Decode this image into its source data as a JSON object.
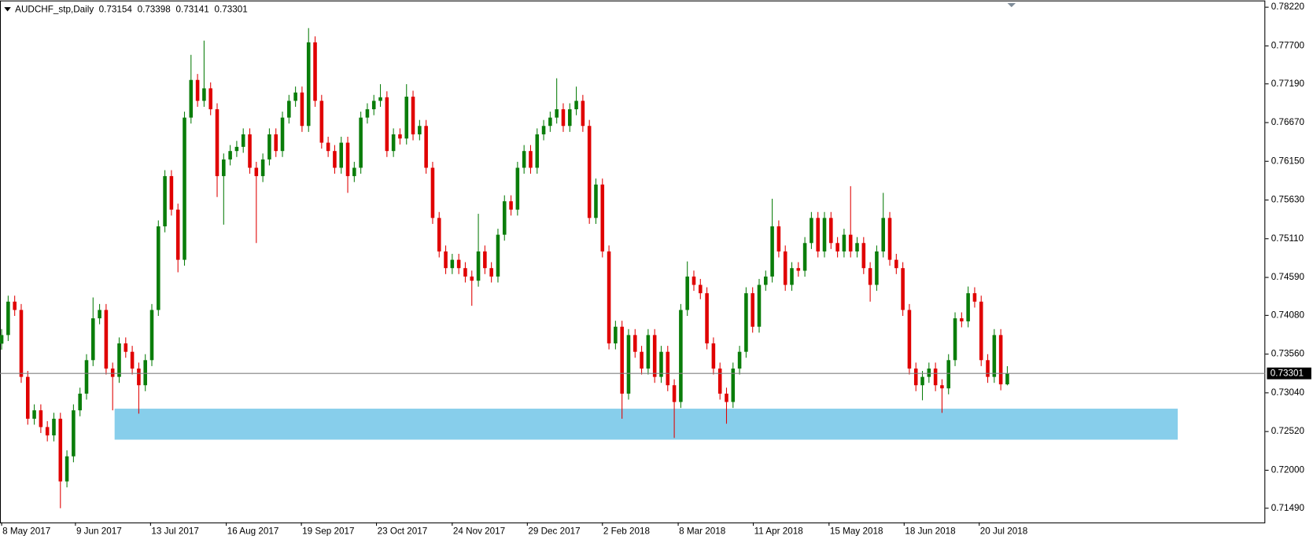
{
  "chart_data": {
    "type": "candlestick",
    "title": "AUDCHF_stp,Daily",
    "up_color": "#0a7d0a",
    "down_color": "#e00000",
    "price_line_color": "#808080",
    "xlim": [
      -0.25,
      193.5
    ],
    "ylim": [
      0.71299,
      0.7831
    ],
    "yticks": [
      {
        "value": 0.7822,
        "label": "0.78220"
      },
      {
        "value": 0.777,
        "label": "0.77700"
      },
      {
        "value": 0.7719,
        "label": "0.77190"
      },
      {
        "value": 0.7667,
        "label": "0.76670"
      },
      {
        "value": 0.7615,
        "label": "0.76150"
      },
      {
        "value": 0.7563,
        "label": "0.75630"
      },
      {
        "value": 0.7511,
        "label": "0.75110"
      },
      {
        "value": 0.7459,
        "label": "0.74590"
      },
      {
        "value": 0.7408,
        "label": "0.74080"
      },
      {
        "value": 0.7356,
        "label": "0.73560"
      },
      {
        "value": 0.7304,
        "label": "0.73040"
      },
      {
        "value": 0.7252,
        "label": "0.72520"
      },
      {
        "value": 0.72,
        "label": "0.72000"
      },
      {
        "value": 0.7149,
        "label": "0.71490"
      }
    ],
    "xticks": [
      {
        "value": 0,
        "label": "8 May 2017"
      },
      {
        "value": 11.3,
        "label": "9 Jun 2017"
      },
      {
        "value": 22.8,
        "label": "13 Jul 2017"
      },
      {
        "value": 34.4,
        "label": "16 Aug 2017"
      },
      {
        "value": 45.9,
        "label": "19 Sep 2017"
      },
      {
        "value": 57.4,
        "label": "23 Oct 2017"
      },
      {
        "value": 69,
        "label": "24 Nov 2017"
      },
      {
        "value": 80.5,
        "label": "29 Dec 2017"
      },
      {
        "value": 92,
        "label": "2 Feb 2018"
      },
      {
        "value": 103.6,
        "label": "8 Mar 2018"
      },
      {
        "value": 115.1,
        "label": "11 Apr 2018"
      },
      {
        "value": 126.7,
        "label": "15 May 2018"
      },
      {
        "value": 138.2,
        "label": "18 Jun 2018"
      },
      {
        "value": 149.7,
        "label": "20 Jul 2018"
      }
    ],
    "zones": [
      {
        "xlim": [
          17.3,
          180.1
        ],
        "ylim": [
          0.72411,
          0.72827
        ],
        "color": "#87ceeb"
      }
    ],
    "open": [
      0.737,
      0.73816,
      0.74265,
      0.74153,
      0.73254,
      0.72692,
      0.72805,
      0.7258,
      0.72468,
      0.72692,
      0.7185,
      0.72187,
      0.72805,
      0.73029,
      0.73479,
      0.74041,
      0.74153,
      0.73366,
      0.73254,
      0.73704,
      0.73591,
      0.73366,
      0.73142,
      0.73479,
      0.74153,
      0.75276,
      0.75951,
      0.75501,
      0.74827,
      0.76737,
      0.77243,
      0.76962,
      0.7713,
      0.76849,
      0.75951,
      0.76175,
      0.76288,
      0.76344,
      0.76512,
      0.76063,
      0.75951,
      0.76175,
      0.76512,
      0.76288,
      0.76737,
      0.76962,
      0.77074,
      0.76625,
      0.77748,
      0.76962,
      0.764,
      0.76288,
      0.76063,
      0.764,
      0.75951,
      0.76063,
      0.76737,
      0.76849,
      0.76962,
      0.7701,
      0.76288,
      0.76512,
      0.76456,
      0.77018,
      0.76512,
      0.76625,
      0.76063,
      0.75389,
      0.74939,
      0.74715,
      0.74827,
      0.74715,
      0.74602,
      0.74546,
      0.74939,
      0.74715,
      0.74602,
      0.75164,
      0.75613,
      0.75501,
      0.76063,
      0.76288,
      0.76063,
      0.76512,
      0.76625,
      0.76737,
      0.76849,
      0.76625,
      0.76849,
      0.76962,
      0.76625,
      0.75389,
      0.75838,
      0.74939,
      0.73704,
      0.73928,
      0.73029,
      0.73816,
      0.73591,
      0.73366,
      0.73816,
      0.73254,
      0.73591,
      0.73142,
      0.72917,
      0.74153,
      0.74602,
      0.7449,
      0.74378,
      0.73704,
      0.73366,
      0.73029,
      0.72917,
      0.73366,
      0.73591,
      0.74378,
      0.73928,
      0.7449,
      0.74602,
      0.75276,
      0.74939,
      0.7449,
      0.74715,
      0.7468,
      0.75052,
      0.75389,
      0.74939,
      0.75389,
      0.75052,
      0.74939,
      0.75164,
      0.74939,
      0.75052,
      0.74715,
      0.7449,
      0.74939,
      0.75389,
      0.74827,
      0.74715,
      0.74153,
      0.73366,
      0.73142,
      0.73254,
      0.73366,
      0.73142,
      0.731,
      0.73479,
      0.74041,
      0.74,
      0.74378,
      0.74265,
      0.73479,
      0.73254,
      0.73816,
      0.73154
    ],
    "high": [
      0.73896,
      0.74345,
      0.74345,
      0.74233,
      0.73334,
      0.72885,
      0.72885,
      0.7266,
      0.72772,
      0.72772,
      0.72267,
      0.72885,
      0.73109,
      0.73559,
      0.74321,
      0.74233,
      0.74233,
      0.73446,
      0.73784,
      0.73784,
      0.73671,
      0.73446,
      0.73559,
      0.74233,
      0.75356,
      0.76031,
      0.76031,
      0.75581,
      0.76817,
      0.7758,
      0.77323,
      0.77771,
      0.7721,
      0.76929,
      0.76255,
      0.76368,
      0.76424,
      0.76592,
      0.76592,
      0.76143,
      0.76255,
      0.76592,
      0.76592,
      0.76817,
      0.77042,
      0.77154,
      0.77154,
      0.77939,
      0.77828,
      0.77042,
      0.7648,
      0.76368,
      0.7648,
      0.7648,
      0.76143,
      0.76817,
      0.76929,
      0.77042,
      0.77186,
      0.7709,
      0.76592,
      0.76592,
      0.77186,
      0.77098,
      0.76705,
      0.76705,
      0.76143,
      0.75469,
      0.75019,
      0.74907,
      0.74907,
      0.74795,
      0.74682,
      0.75445,
      0.75019,
      0.74795,
      0.75244,
      0.75693,
      0.75693,
      0.76143,
      0.76368,
      0.76368,
      0.76592,
      0.76705,
      0.76817,
      0.77265,
      0.76929,
      0.76929,
      0.77153,
      0.77042,
      0.76705,
      0.75918,
      0.75918,
      0.75019,
      0.74008,
      0.74008,
      0.73896,
      0.73896,
      0.73671,
      0.73896,
      0.73896,
      0.73671,
      0.73671,
      0.73222,
      0.74233,
      0.74805,
      0.74682,
      0.7457,
      0.74458,
      0.73784,
      0.73446,
      0.73109,
      0.73446,
      0.73671,
      0.74458,
      0.74458,
      0.7457,
      0.74682,
      0.75647,
      0.75356,
      0.75019,
      0.74795,
      0.74795,
      0.75132,
      0.75469,
      0.75469,
      0.75469,
      0.75469,
      0.75132,
      0.75244,
      0.75816,
      0.75132,
      0.75132,
      0.74795,
      0.75019,
      0.75726,
      0.75469,
      0.74907,
      0.74795,
      0.74233,
      0.73446,
      0.73334,
      0.73446,
      0.73446,
      0.73222,
      0.73559,
      0.74121,
      0.74121,
      0.74468,
      0.74458,
      0.74345,
      0.73559,
      0.73896,
      0.73896,
      0.73398
    ],
    "low": [
      0.7362,
      0.73736,
      0.74073,
      0.73174,
      0.72612,
      0.72612,
      0.725,
      0.72388,
      0.72388,
      0.7149,
      0.7177,
      0.72107,
      0.72725,
      0.72949,
      0.73399,
      0.73961,
      0.73286,
      0.72805,
      0.73174,
      0.73511,
      0.73286,
      0.7276,
      0.73062,
      0.73399,
      0.74073,
      0.75196,
      0.75421,
      0.74659,
      0.74747,
      0.76657,
      0.76882,
      0.76882,
      0.76769,
      0.7567,
      0.75299,
      0.76095,
      0.76208,
      0.76264,
      0.75983,
      0.75052,
      0.75871,
      0.76095,
      0.76208,
      0.76208,
      0.76657,
      0.76882,
      0.76545,
      0.76545,
      0.76882,
      0.7632,
      0.76208,
      0.75983,
      0.75983,
      0.75726,
      0.75871,
      0.75983,
      0.76657,
      0.76769,
      0.76882,
      0.76208,
      0.76208,
      0.76376,
      0.76376,
      0.76432,
      0.76432,
      0.75983,
      0.75309,
      0.74859,
      0.74635,
      0.74635,
      0.74635,
      0.74522,
      0.74209,
      0.74466,
      0.74635,
      0.74522,
      0.74522,
      0.75084,
      0.75421,
      0.75421,
      0.75983,
      0.75983,
      0.75983,
      0.76432,
      0.76545,
      0.76657,
      0.76545,
      0.76545,
      0.76769,
      0.76545,
      0.75309,
      0.75309,
      0.74859,
      0.73624,
      0.73624,
      0.72692,
      0.72949,
      0.73511,
      0.73286,
      0.73286,
      0.73174,
      0.73174,
      0.73062,
      0.72434,
      0.72837,
      0.74073,
      0.7441,
      0.74298,
      0.73624,
      0.73286,
      0.72949,
      0.72625,
      0.72837,
      0.73286,
      0.73511,
      0.73848,
      0.73848,
      0.7441,
      0.74522,
      0.74859,
      0.7441,
      0.7441,
      0.746,
      0.746,
      0.74972,
      0.74859,
      0.74859,
      0.74972,
      0.74859,
      0.74859,
      0.74859,
      0.74859,
      0.74635,
      0.74265,
      0.7441,
      0.74859,
      0.74747,
      0.74635,
      0.74073,
      0.73286,
      0.73062,
      0.7294,
      0.73174,
      0.73062,
      0.72771,
      0.7302,
      0.73399,
      0.7392,
      0.7392,
      0.74185,
      0.73399,
      0.73174,
      0.73174,
      0.73074,
      0.73141
    ],
    "close": [
      0.73816,
      0.74265,
      0.74153,
      0.73254,
      0.72692,
      0.72805,
      0.7258,
      0.72468,
      0.72692,
      0.7185,
      0.72187,
      0.72805,
      0.73029,
      0.73479,
      0.74041,
      0.74153,
      0.73366,
      0.73254,
      0.73704,
      0.73591,
      0.73366,
      0.73142,
      0.73479,
      0.74153,
      0.75276,
      0.75951,
      0.75501,
      0.74827,
      0.76737,
      0.77243,
      0.76962,
      0.7713,
      0.76849,
      0.75951,
      0.76175,
      0.76288,
      0.76344,
      0.76512,
      0.76063,
      0.75951,
      0.76175,
      0.76512,
      0.76288,
      0.76737,
      0.76962,
      0.77074,
      0.76625,
      0.77748,
      0.76962,
      0.764,
      0.76288,
      0.76063,
      0.764,
      0.75951,
      0.76063,
      0.76737,
      0.76849,
      0.76962,
      0.7701,
      0.76288,
      0.76512,
      0.76456,
      0.77018,
      0.76512,
      0.76625,
      0.76063,
      0.75389,
      0.74939,
      0.74715,
      0.74827,
      0.74715,
      0.74602,
      0.74546,
      0.74939,
      0.74715,
      0.74602,
      0.75164,
      0.75613,
      0.75501,
      0.76063,
      0.76288,
      0.76063,
      0.76512,
      0.76625,
      0.76737,
      0.76849,
      0.76625,
      0.76849,
      0.76962,
      0.76625,
      0.75389,
      0.75838,
      0.74939,
      0.73704,
      0.73928,
      0.73029,
      0.73816,
      0.73591,
      0.73366,
      0.73816,
      0.73254,
      0.73591,
      0.73142,
      0.72917,
      0.74153,
      0.74602,
      0.7449,
      0.74378,
      0.73704,
      0.73366,
      0.73029,
      0.72917,
      0.73366,
      0.73591,
      0.74378,
      0.73928,
      0.7449,
      0.74602,
      0.75276,
      0.74939,
      0.7449,
      0.74715,
      0.7468,
      0.75052,
      0.75389,
      0.74939,
      0.75389,
      0.75052,
      0.74939,
      0.75164,
      0.74939,
      0.75052,
      0.74715,
      0.7449,
      0.74939,
      0.75389,
      0.74827,
      0.74715,
      0.74153,
      0.73366,
      0.73142,
      0.73254,
      0.73366,
      0.73142,
      0.731,
      0.73479,
      0.74041,
      0.74,
      0.74378,
      0.74265,
      0.73479,
      0.73254,
      0.73816,
      0.73154,
      0.73301
    ]
  }
}
